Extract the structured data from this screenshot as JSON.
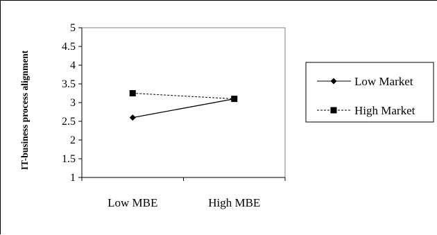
{
  "chart_data": {
    "type": "line",
    "title": "",
    "xlabel": "",
    "ylabel": "IT-business process alignment",
    "categories": [
      "Low MBE",
      "High MBE"
    ],
    "ylim": [
      1,
      5
    ],
    "yticks": [
      "1",
      "1.5",
      "2",
      "2.5",
      "3",
      "3.5",
      "4",
      "4.5",
      "5"
    ],
    "grid": false,
    "legend_position": "right",
    "series": [
      {
        "name": "Low Market",
        "values": [
          2.6,
          3.1
        ],
        "line": "solid",
        "marker": "diamond",
        "color": "#000000"
      },
      {
        "name": "High Market",
        "values": [
          3.25,
          3.1
        ],
        "line": "dashed",
        "marker": "square",
        "color": "#000000"
      }
    ]
  }
}
